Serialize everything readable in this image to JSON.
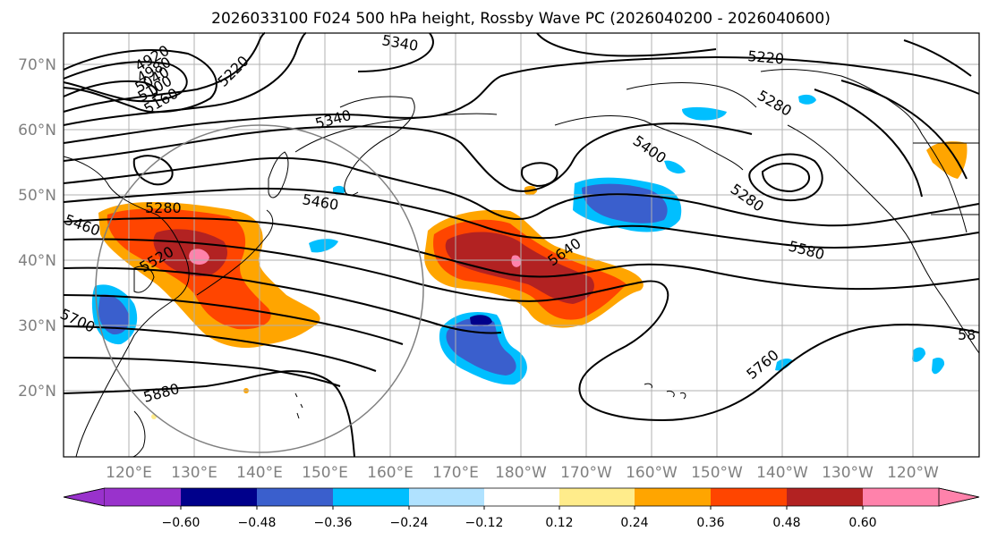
{
  "title": "2026033100 F024 500 hPa height, Rossby Wave PC (2026040200 - 2026040600)",
  "map": {
    "lat_labels": [
      "70°N",
      "60°N",
      "50°N",
      "40°N",
      "30°N",
      "20°N"
    ],
    "lon_labels": [
      "120°E",
      "130°E",
      "140°E",
      "150°E",
      "160°E",
      "170°E",
      "180°W",
      "170°W",
      "160°W",
      "150°W",
      "140°W",
      "130°W",
      "120°W"
    ],
    "contour_labels": [
      "4920",
      "4980",
      "5040",
      "5100",
      "5160",
      "5220",
      "5340",
      "5220",
      "5280",
      "5280",
      "5340",
      "5460",
      "5400",
      "5280",
      "5520",
      "5460",
      "5700",
      "5580",
      "5640",
      "5760",
      "5880",
      "58"
    ]
  },
  "colorbar": {
    "ticks": [
      "−0.60",
      "−0.48",
      "−0.36",
      "−0.24",
      "−0.12",
      "0.12",
      "0.24",
      "0.36",
      "0.48",
      "0.60"
    ],
    "colors": [
      "#9932CC",
      "#00008B",
      "#3A5FCD",
      "#00BFFF",
      "#B0E2FF",
      "#FFFFFF",
      "#FFEC8B",
      "#FFA500",
      "#FF4500",
      "#B22222",
      "#FF82AB"
    ]
  },
  "anomaly_colors": {
    "neg1": "#00BFFF",
    "neg2": "#3A5FCD",
    "neg3": "#00008B",
    "pos1": "#FFA500",
    "pos2": "#FF4500",
    "pos3": "#B22222",
    "pos4": "#FF82AB"
  }
}
